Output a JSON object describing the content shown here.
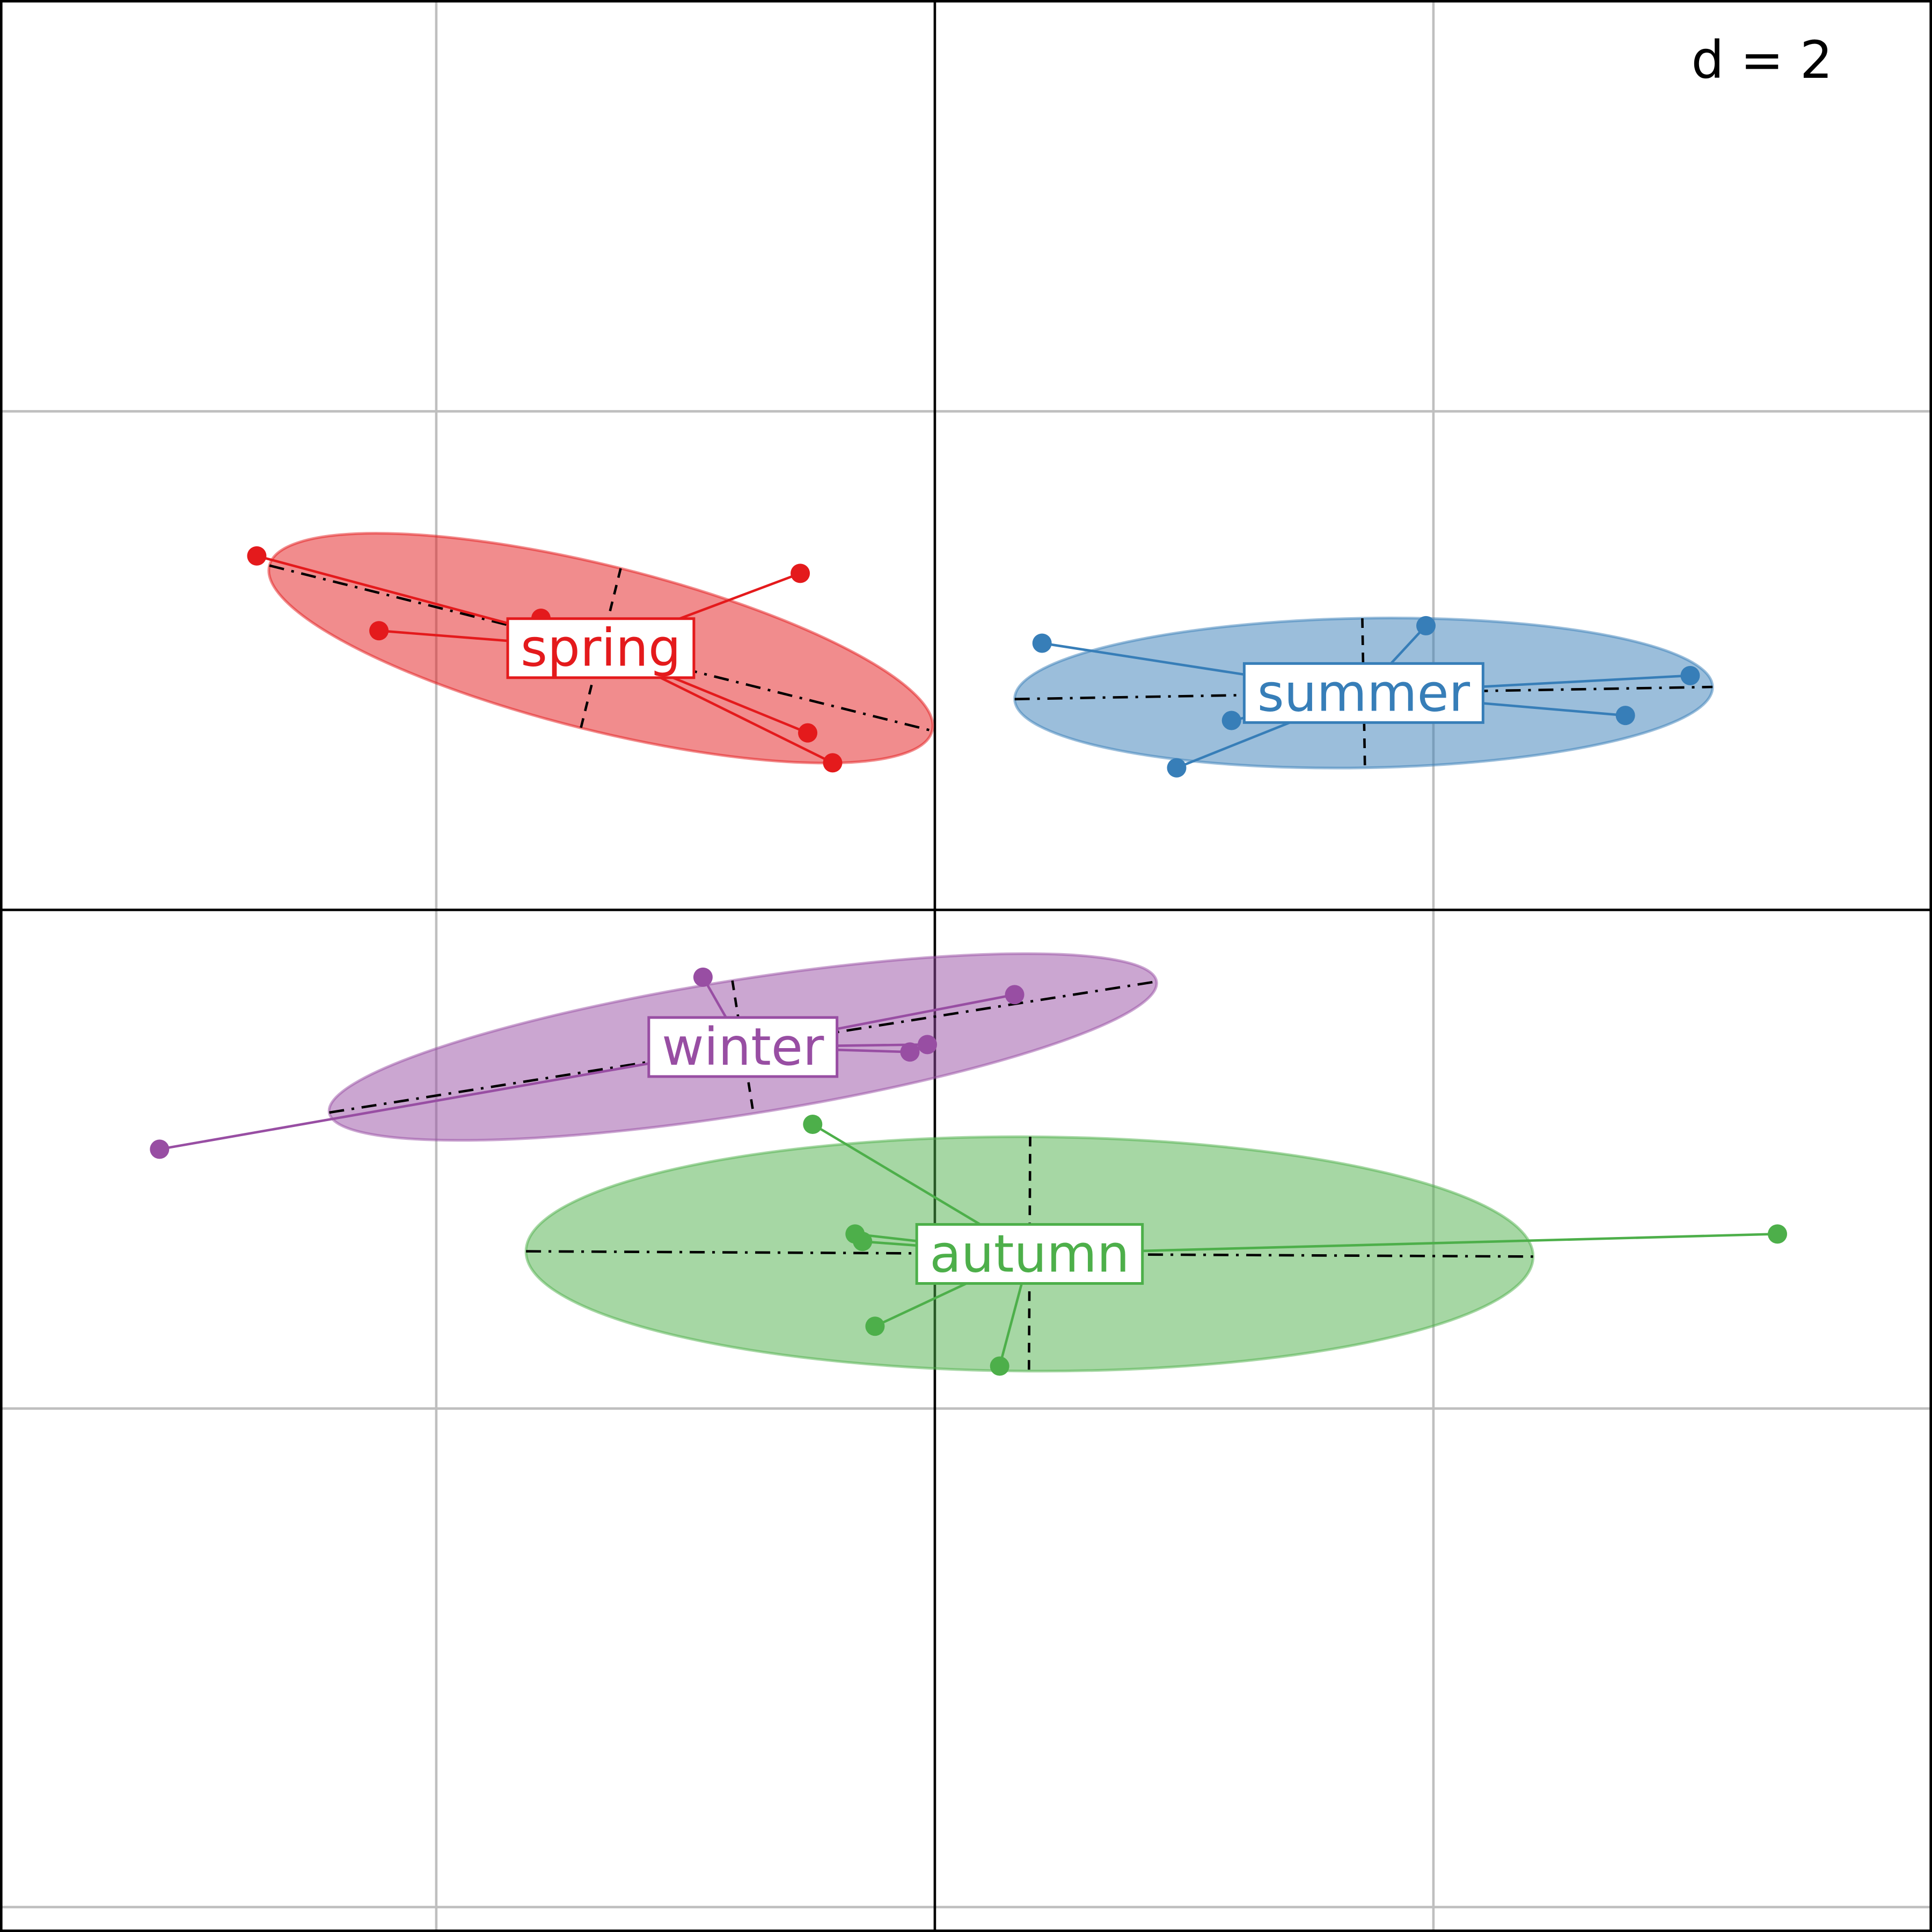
{
  "chart_data": {
    "type": "scatter",
    "title": "",
    "xlabel": "",
    "ylabel": "",
    "xlim": [
      -3.75,
      4.0
    ],
    "ylim": [
      -4.1,
      3.65
    ],
    "grid": true,
    "grid_step": 2,
    "scale_label": "d = 2",
    "groups": [
      {
        "name": "spring",
        "color": "#e41a1c",
        "center": [
          -1.34,
          1.05
        ],
        "ellipse": {
          "semi_major": 1.37,
          "semi_minor": 0.33,
          "angle_deg": -14
        },
        "points": [
          [
            -2.72,
            1.42
          ],
          [
            -1.58,
            1.17
          ],
          [
            -2.23,
            1.12
          ],
          [
            -0.54,
            1.35
          ],
          [
            -0.51,
            0.71
          ],
          [
            -0.41,
            0.59
          ]
        ]
      },
      {
        "name": "summer",
        "color": "#377eb8",
        "center": [
          1.72,
          0.87
        ],
        "ellipse": {
          "semi_major": 1.4,
          "semi_minor": 0.3,
          "angle_deg": 1
        },
        "points": [
          [
            0.43,
            1.07
          ],
          [
            1.97,
            1.14
          ],
          [
            3.03,
            0.94
          ],
          [
            2.77,
            0.78
          ],
          [
            1.19,
            0.76
          ],
          [
            0.97,
            0.57
          ]
        ]
      },
      {
        "name": "winter",
        "color": "#984ea3",
        "center": [
          -0.77,
          -0.55
        ],
        "ellipse": {
          "semi_major": 1.68,
          "semi_minor": 0.27,
          "angle_deg": 9
        },
        "points": [
          [
            -0.93,
            -0.27
          ],
          [
            0.32,
            -0.34
          ],
          [
            -0.1,
            -0.57
          ],
          [
            -0.03,
            -0.54
          ],
          [
            -3.11,
            -0.96
          ]
        ]
      },
      {
        "name": "autumn",
        "color": "#4daf4a",
        "center": [
          0.38,
          -1.38
        ],
        "ellipse": {
          "semi_major": 2.02,
          "semi_minor": 0.47,
          "angle_deg": -0.3
        },
        "points": [
          [
            -0.49,
            -0.86
          ],
          [
            -0.32,
            -1.3
          ],
          [
            -0.29,
            -1.33
          ],
          [
            -0.24,
            -1.67
          ],
          [
            0.26,
            -1.83
          ],
          [
            3.38,
            -1.3
          ]
        ]
      }
    ]
  }
}
